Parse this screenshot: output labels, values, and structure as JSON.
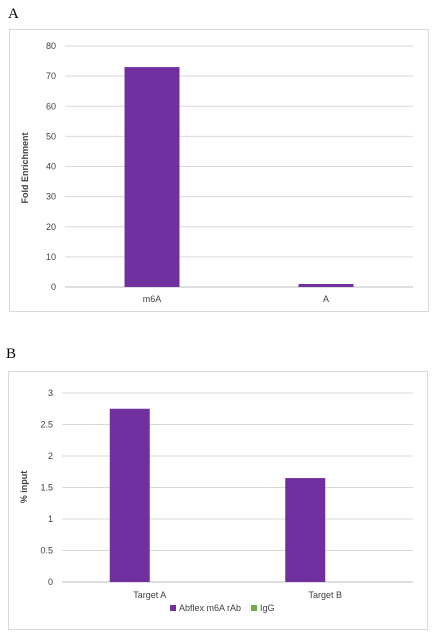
{
  "panels": {
    "a_letter": "A",
    "b_letter": "B"
  },
  "chart_data": [
    {
      "type": "bar",
      "categories": [
        "m6A",
        "A"
      ],
      "values": [
        73,
        1
      ],
      "title": "",
      "xlabel": "",
      "ylabel": "Fold Enrichment",
      "ylim": [
        0,
        80
      ],
      "yticks": [
        0,
        10,
        20,
        30,
        40,
        50,
        60,
        70,
        80
      ],
      "grid": true,
      "colors": [
        "#7030a0"
      ]
    },
    {
      "type": "bar",
      "categories": [
        "Target A",
        "Target B"
      ],
      "series": [
        {
          "name": "Abflex m6A rAb",
          "values": [
            2.75,
            1.65
          ],
          "color": "#7030a0"
        },
        {
          "name": "IgG",
          "values": [
            0,
            0
          ],
          "color": "#70ad47"
        }
      ],
      "title": "",
      "xlabel": "",
      "ylabel": "% input",
      "ylim": [
        0,
        3
      ],
      "yticks": [
        "0",
        "0.5",
        "1",
        "1.5",
        "2",
        "2.5",
        "3"
      ],
      "grid": true,
      "legend": "bottom"
    }
  ]
}
